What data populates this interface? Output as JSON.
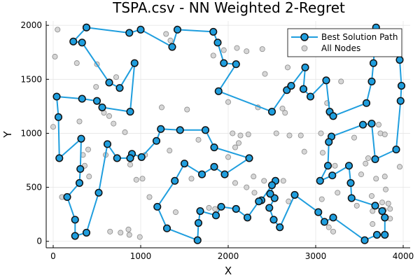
{
  "chart_data": {
    "type": "scatter",
    "title": "TSPA.csv - NN Weighted 2-Regret",
    "xlabel": "X",
    "ylabel": "Y",
    "xlim": [
      -80,
      4080
    ],
    "ylim": [
      -60,
      2040
    ],
    "xticks": [
      0,
      1000,
      2000,
      3000,
      4000
    ],
    "yticks": [
      0,
      500,
      1000,
      1500,
      2000
    ],
    "grid": true,
    "legend_position": "top-right",
    "series": [
      {
        "name": "Best Solution Path",
        "kind": "line-with-markers",
        "color": "#1f9ede",
        "closed": true,
        "points": [
          [
            380,
            1980
          ],
          [
            870,
            1930
          ],
          [
            1000,
            1960
          ],
          [
            1360,
            1800
          ],
          [
            1420,
            1960
          ],
          [
            1830,
            1940
          ],
          [
            1880,
            1840
          ],
          [
            1950,
            1650
          ],
          [
            2090,
            1640
          ],
          [
            1890,
            1390
          ],
          [
            2500,
            1200
          ],
          [
            2670,
            1400
          ],
          [
            2720,
            1440
          ],
          [
            2880,
            1610
          ],
          [
            2860,
            1410
          ],
          [
            2940,
            1340
          ],
          [
            3120,
            1490
          ],
          [
            3160,
            1200
          ],
          [
            3200,
            1160
          ],
          [
            3580,
            1280
          ],
          [
            3640,
            1480
          ],
          [
            3660,
            1650
          ],
          [
            3690,
            1980
          ],
          [
            3960,
            1680
          ],
          [
            3980,
            1440
          ],
          [
            3970,
            1300
          ],
          [
            3920,
            850
          ],
          [
            3680,
            760
          ],
          [
            3640,
            1090
          ],
          [
            3540,
            1080
          ],
          [
            3180,
            970
          ],
          [
            3150,
            920
          ],
          [
            3140,
            700
          ],
          [
            3050,
            560
          ],
          [
            3190,
            610
          ],
          [
            3380,
            700
          ],
          [
            3400,
            540
          ],
          [
            3410,
            400
          ],
          [
            3680,
            330
          ],
          [
            3760,
            280
          ],
          [
            3790,
            220
          ],
          [
            3790,
            60
          ],
          [
            3700,
            60
          ],
          [
            3560,
            10
          ],
          [
            3200,
            220
          ],
          [
            3100,
            180
          ],
          [
            3030,
            270
          ],
          [
            2760,
            430
          ],
          [
            2590,
            130
          ],
          [
            2520,
            200
          ],
          [
            2470,
            310
          ],
          [
            2530,
            400
          ],
          [
            2480,
            440
          ],
          [
            2540,
            560
          ],
          [
            2500,
            520
          ],
          [
            2380,
            380
          ],
          [
            2350,
            370
          ],
          [
            2220,
            220
          ],
          [
            2090,
            300
          ],
          [
            1920,
            320
          ],
          [
            1860,
            240
          ],
          [
            1680,
            280
          ],
          [
            1660,
            170
          ],
          [
            1650,
            10
          ],
          [
            1300,
            120
          ],
          [
            1190,
            320
          ],
          [
            1390,
            560
          ],
          [
            1500,
            720
          ],
          [
            1700,
            620
          ],
          [
            1840,
            690
          ],
          [
            1960,
            620
          ],
          [
            2240,
            770
          ],
          [
            1840,
            870
          ],
          [
            1740,
            1030
          ],
          [
            1450,
            1030
          ],
          [
            1230,
            1040
          ],
          [
            1180,
            930
          ],
          [
            1010,
            780
          ],
          [
            900,
            810
          ],
          [
            880,
            770
          ],
          [
            730,
            770
          ],
          [
            620,
            900
          ],
          [
            520,
            450
          ],
          [
            380,
            80
          ],
          [
            250,
            50
          ],
          [
            250,
            200
          ],
          [
            160,
            410
          ],
          [
            300,
            540
          ],
          [
            310,
            670
          ],
          [
            320,
            950
          ],
          [
            70,
            770
          ],
          [
            60,
            1150
          ],
          [
            40,
            1340
          ],
          [
            330,
            1320
          ],
          [
            500,
            1300
          ],
          [
            560,
            1240
          ],
          [
            880,
            1200
          ],
          [
            930,
            1650
          ],
          [
            760,
            1420
          ],
          [
            640,
            1470
          ],
          [
            330,
            1840
          ],
          [
            230,
            1850
          ],
          [
            380,
            1980
          ]
        ]
      },
      {
        "name": "All Nodes",
        "kind": "scatter",
        "color": "#c8c8c8",
        "points": [
          [
            50,
            1960
          ],
          [
            20,
            1710
          ],
          [
            270,
            1650
          ],
          [
            500,
            1640
          ],
          [
            720,
            1520
          ],
          [
            490,
            1430
          ],
          [
            300,
            1110
          ],
          [
            690,
            1090
          ],
          [
            640,
            1160
          ],
          [
            580,
            1190
          ],
          [
            820,
            1010
          ],
          [
            730,
            780
          ],
          [
            880,
            710
          ],
          [
            1020,
            580
          ],
          [
            950,
            570
          ],
          [
            1240,
            1240
          ],
          [
            1530,
            1220
          ],
          [
            1330,
            840
          ],
          [
            1660,
            940
          ],
          [
            1580,
            580
          ],
          [
            1780,
            310
          ],
          [
            1850,
            300
          ],
          [
            1400,
            270
          ],
          [
            1100,
            410
          ],
          [
            860,
            110
          ],
          [
            770,
            80
          ],
          [
            650,
            90
          ],
          [
            990,
            40
          ],
          [
            870,
            60
          ],
          [
            410,
            600
          ],
          [
            340,
            800
          ],
          [
            600,
            800
          ],
          [
            0,
            1060
          ],
          [
            100,
            410
          ],
          [
            1290,
            1920
          ],
          [
            1340,
            1860
          ],
          [
            1830,
            1720
          ],
          [
            2100,
            1790
          ],
          [
            2210,
            1760
          ],
          [
            2390,
            1780
          ],
          [
            2420,
            1550
          ],
          [
            2000,
            1290
          ],
          [
            2340,
            1240
          ],
          [
            2620,
            1230
          ],
          [
            2680,
            1610
          ],
          [
            2700,
            1430
          ],
          [
            2650,
            1190
          ],
          [
            2700,
            980
          ],
          [
            2550,
            1000
          ],
          [
            2830,
            980
          ],
          [
            2870,
            830
          ],
          [
            2230,
            990
          ],
          [
            2120,
            910
          ],
          [
            2080,
            870
          ],
          [
            2080,
            540
          ],
          [
            2210,
            500
          ],
          [
            2290,
            600
          ],
          [
            2300,
            450
          ],
          [
            2410,
            560
          ],
          [
            2630,
            560
          ],
          [
            2690,
            370
          ],
          [
            2760,
            420
          ],
          [
            3160,
            1180
          ],
          [
            3290,
            1480
          ],
          [
            3130,
            1280
          ],
          [
            3060,
            1000
          ],
          [
            3080,
            820
          ],
          [
            3440,
            960
          ],
          [
            3570,
            720
          ],
          [
            3720,
            1080
          ],
          [
            3740,
            1000
          ],
          [
            3790,
            990
          ],
          [
            3600,
            770
          ],
          [
            3690,
            580
          ],
          [
            3640,
            420
          ],
          [
            3650,
            280
          ],
          [
            3650,
            160
          ],
          [
            3760,
            360
          ],
          [
            3850,
            210
          ],
          [
            3850,
            300
          ],
          [
            3780,
            290
          ],
          [
            3800,
            480
          ],
          [
            3790,
            600
          ],
          [
            3960,
            690
          ],
          [
            3470,
            330
          ],
          [
            3250,
            450
          ],
          [
            3070,
            390
          ],
          [
            3520,
            620
          ],
          [
            3220,
            700
          ],
          [
            3830,
            350
          ],
          [
            2140,
            980
          ],
          [
            1950,
            1770
          ],
          [
            2050,
            1000
          ],
          [
            3150,
            130
          ],
          [
            3200,
            90
          ],
          [
            2000,
            780
          ],
          [
            1050,
            800
          ],
          [
            360,
            700
          ],
          [
            400,
            850
          ]
        ]
      }
    ]
  }
}
